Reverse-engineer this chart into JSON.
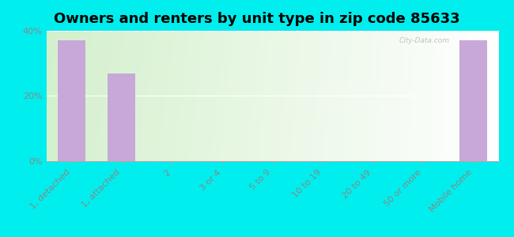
{
  "title": "Owners and renters by unit type in zip code 85633",
  "categories": [
    "1, detached",
    "1, attached",
    "2",
    "3 or 4",
    "5 to 9",
    "10 to 19",
    "20 to 49",
    "50 or more",
    "Mobile home"
  ],
  "values": [
    37.0,
    27.0,
    0,
    0,
    0,
    0,
    0,
    0,
    37.0
  ],
  "bar_color": "#c8a8d8",
  "background_outer": "#00EEEE",
  "background_inner_left": "#d4eecc",
  "background_inner_right": "#f8fff8",
  "ylim": [
    0,
    40
  ],
  "yticks": [
    0,
    20,
    40
  ],
  "ytick_labels": [
    "0%",
    "20%",
    "40%"
  ],
  "title_fontsize": 13,
  "tick_fontsize": 8,
  "tick_color": "#888888",
  "watermark": "City-Data.com"
}
